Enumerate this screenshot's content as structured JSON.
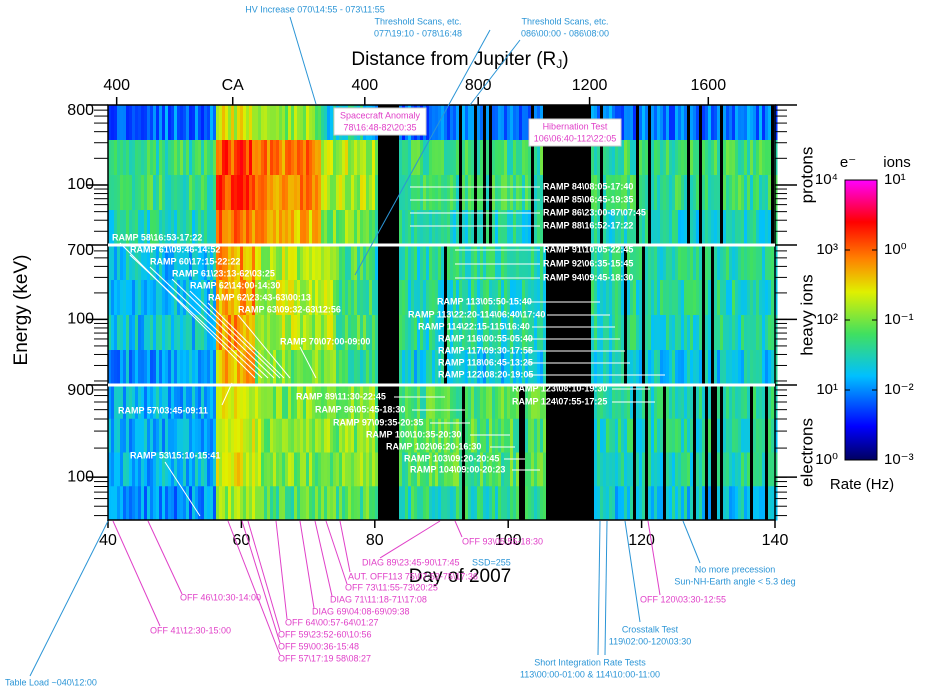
{
  "chart_data": {
    "type": "spectrogram",
    "x_label": "Day of 2007",
    "xlim": [
      40,
      140
    ],
    "xticks": [
      40,
      60,
      80,
      100,
      120,
      140
    ],
    "x2_label": {
      "text": "Distance from Jupiter (R",
      "sub": "J",
      "end": ")"
    },
    "x2ticks": [
      {
        "value": 41.3,
        "label": "400"
      },
      {
        "value": 58.7,
        "label": "CA"
      },
      {
        "value": 78.5,
        "label": "400"
      },
      {
        "value": 95.5,
        "label": "800"
      },
      {
        "value": 112.2,
        "label": "1200"
      },
      {
        "value": 130,
        "label": "1600"
      }
    ],
    "y_label": "Energy (keV)",
    "log_y": true,
    "panels": [
      {
        "name": "protons",
        "ylim": [
          21,
          800
        ],
        "yticks": [
          800,
          100
        ]
      },
      {
        "name": "heavy ions",
        "ylim": [
          18,
          700
        ],
        "yticks": [
          700,
          100
        ]
      },
      {
        "name": "electrons",
        "ylim": [
          36,
          900
        ],
        "yticks": [
          900,
          100
        ]
      }
    ],
    "colorbar": {
      "title_left": "e⁻",
      "title_right": "ions",
      "label": "Rate (Hz)",
      "left": {
        "lim": [
          1,
          10000
        ],
        "ticks": [
          {
            "value": 1,
            "label": "10⁰"
          },
          {
            "value": 10,
            "label": "10¹"
          },
          {
            "value": 100,
            "label": "10²"
          },
          {
            "value": 1000,
            "label": "10³"
          },
          {
            "value": 10000,
            "label": "10⁴"
          }
        ]
      },
      "right": {
        "lim": [
          0.001,
          10
        ],
        "ticks": [
          {
            "value": 0.001,
            "label": "10⁻³"
          },
          {
            "value": 0.01,
            "label": "10⁻²"
          },
          {
            "value": 0.1,
            "label": "10⁻¹"
          },
          {
            "value": 1,
            "label": "10⁰"
          },
          {
            "value": 10,
            "label": "10¹"
          }
        ]
      }
    },
    "annotations": [
      {
        "lines": [
          "HV Increase 070\\14:55 - 073\\11:55"
        ],
        "color": "#2b95d6"
      },
      {
        "lines": [
          "Threshold Scans, etc.",
          "077\\19:10 - 078\\16:48"
        ],
        "color": "#2b95d6"
      },
      {
        "lines": [
          "Threshold Scans, etc.",
          "086\\00:00 - 086\\08:00"
        ],
        "color": "#2b95d6"
      },
      {
        "lines": [
          "Spacecraft Anomaly",
          "78\\16:48-82\\20:35"
        ],
        "color": "#e040c8",
        "boxed": true
      },
      {
        "lines": [
          "Hibernation Test",
          "106\\06:40-112\\22:05"
        ],
        "color": "#e040c8",
        "boxed": true
      },
      {
        "lines": [
          "RAMP 84\\08:05-17:40"
        ],
        "color": "#ffffff"
      },
      {
        "lines": [
          "RAMP 85\\06:45-19:35"
        ],
        "color": "#ffffff"
      },
      {
        "lines": [
          "RAMP 86\\23:00-87\\07:45"
        ],
        "color": "#ffffff"
      },
      {
        "lines": [
          "RAMP 88\\16:52-17:22"
        ],
        "color": "#ffffff"
      },
      {
        "lines": [
          "RAMP 58\\16:53-17:22"
        ],
        "color": "#ffffff"
      },
      {
        "lines": [
          "RAMP 61\\09:46-14:52"
        ],
        "color": "#ffffff"
      },
      {
        "lines": [
          "RAMP 60\\17:15-22:22"
        ],
        "color": "#ffffff"
      },
      {
        "lines": [
          "RAMP 61\\23:13-62\\03:25"
        ],
        "color": "#ffffff"
      },
      {
        "lines": [
          "RAMP 62\\14:00-14:30"
        ],
        "color": "#ffffff"
      },
      {
        "lines": [
          "RAMP 62\\23:43-63\\00:13"
        ],
        "color": "#ffffff"
      },
      {
        "lines": [
          "RAMP 63\\09:32-63\\12:56"
        ],
        "color": "#ffffff"
      },
      {
        "lines": [
          "RAMP 70\\07:00-09:00"
        ],
        "color": "#ffffff"
      },
      {
        "lines": [
          "RAMP 91\\10:05-22:45"
        ],
        "color": "#ffffff"
      },
      {
        "lines": [
          "RAMP 92\\06:35-15:45"
        ],
        "color": "#ffffff"
      },
      {
        "lines": [
          "RAMP 94\\09:45-18:30"
        ],
        "color": "#ffffff"
      },
      {
        "lines": [
          "RAMP 113\\05:50-15:40"
        ],
        "color": "#ffffff"
      },
      {
        "lines": [
          "RAMP 113\\22:20-114\\06:40\\17:40"
        ],
        "color": "#ffffff"
      },
      {
        "lines": [
          "RAMP 114\\22:15-115\\16:40"
        ],
        "color": "#ffffff"
      },
      {
        "lines": [
          "RAMP 116\\00:55-05:40"
        ],
        "color": "#ffffff"
      },
      {
        "lines": [
          "RAMP 117\\09:30-17:55"
        ],
        "color": "#ffffff"
      },
      {
        "lines": [
          "RAMP 118\\06:45-13:25"
        ],
        "color": "#ffffff"
      },
      {
        "lines": [
          "RAMP 122\\08:20-19:05"
        ],
        "color": "#ffffff"
      },
      {
        "lines": [
          "RAMP 57\\03:45-09:11"
        ],
        "color": "#ffffff"
      },
      {
        "lines": [
          "RAMP 53\\15:10-15:41"
        ],
        "color": "#ffffff"
      },
      {
        "lines": [
          "RAMP 89\\11:30-22:45"
        ],
        "color": "#ffffff"
      },
      {
        "lines": [
          "RAMP 96\\05:45-18:30"
        ],
        "color": "#ffffff"
      },
      {
        "lines": [
          "RAMP 97\\09:35-20:35"
        ],
        "color": "#ffffff"
      },
      {
        "lines": [
          "RAMP 100\\10:35-20:30"
        ],
        "color": "#ffffff"
      },
      {
        "lines": [
          "RAMP 102\\06:20-16:30"
        ],
        "color": "#ffffff"
      },
      {
        "lines": [
          "RAMP 103\\09:20-20:45"
        ],
        "color": "#ffffff"
      },
      {
        "lines": [
          "RAMP 104\\09:00-20:23"
        ],
        "color": "#ffffff"
      },
      {
        "lines": [
          "RAMP 123\\08:10-19:30"
        ],
        "color": "#ffffff"
      },
      {
        "lines": [
          "RAMP 124\\07:55-17:25"
        ],
        "color": "#ffffff"
      },
      {
        "lines": [
          "OFF 93\\05:55-18:30"
        ],
        "color": "#e040c8"
      },
      {
        "lines": [
          "DIAG 89\\23:45-90\\17:45"
        ],
        "color": "#e040c8"
      },
      {
        "lines": [
          "SSD=255"
        ],
        "color": "#2b95d6"
      },
      {
        "lines": [
          "AUT. OFF113 75\\07:52-75\\17:36"
        ],
        "color": "#e040c8"
      },
      {
        "lines": [
          "OFF 73\\11:55-73\\20:25"
        ],
        "color": "#e040c8"
      },
      {
        "lines": [
          "DIAG 71\\11:18-71\\17:08"
        ],
        "color": "#e040c8"
      },
      {
        "lines": [
          "DIAG 69\\04:08-69\\09:38"
        ],
        "color": "#e040c8"
      },
      {
        "lines": [
          "OFF 64\\00:57-64\\01:27"
        ],
        "color": "#e040c8"
      },
      {
        "lines": [
          "OFF 59\\23:52-60\\10:56"
        ],
        "color": "#e040c8"
      },
      {
        "lines": [
          "OFF 59\\00:36-15:48"
        ],
        "color": "#e040c8"
      },
      {
        "lines": [
          "OFF 57\\17:19 58\\08:27"
        ],
        "color": "#e040c8"
      },
      {
        "lines": [
          "OFF 46\\10:30-14:00"
        ],
        "color": "#e040c8"
      },
      {
        "lines": [
          "OFF 41\\12:30-15:00"
        ],
        "color": "#e040c8"
      },
      {
        "lines": [
          "Table Load ~040\\12:00"
        ],
        "color": "#2b95d6"
      },
      {
        "lines": [
          "Short Integration Rate Tests",
          "113\\00:00-01:00 & 114\\10:00-11:00"
        ],
        "color": "#2b95d6"
      },
      {
        "lines": [
          "Crosstalk Test",
          "119\\02:00-120\\03:30"
        ],
        "color": "#2b95d6"
      },
      {
        "lines": [
          "OFF 120\\03:30-12:55"
        ],
        "color": "#e040c8"
      },
      {
        "lines": [
          "No more precession",
          "Sun-NH-Earth angle < 5.3 deg"
        ],
        "color": "#2b95d6"
      }
    ]
  }
}
